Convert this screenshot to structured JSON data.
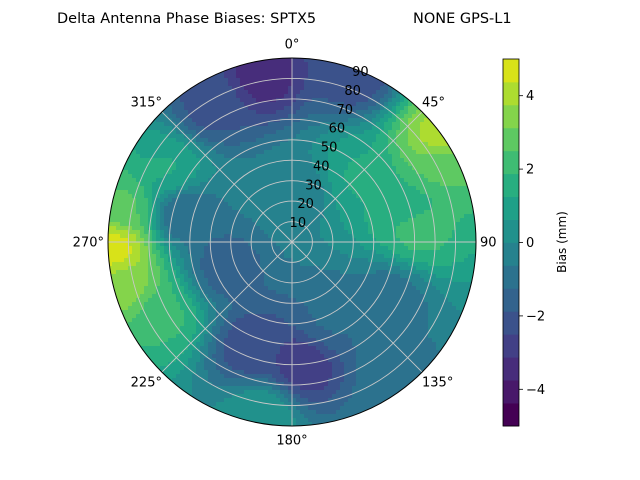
{
  "chart_data": {
    "type": "polar-contour",
    "title": "Delta Antenna Phase Biases: SPTX5",
    "subtitle": "NONE GPS-L1",
    "azimuth_ticks": [
      {
        "angle": 0,
        "label": "0°"
      },
      {
        "angle": 45,
        "label": "45°"
      },
      {
        "angle": 90,
        "label": "90"
      },
      {
        "angle": 135,
        "label": "135°"
      },
      {
        "angle": 180,
        "label": "180°"
      },
      {
        "angle": 225,
        "label": "225°"
      },
      {
        "angle": 270,
        "label": "270°"
      },
      {
        "angle": 315,
        "label": "315°"
      }
    ],
    "radial_ticks": [
      10,
      20,
      30,
      40,
      50,
      60,
      70,
      80,
      90
    ],
    "radial_range": [
      0,
      90
    ],
    "grid": true,
    "colorbar": {
      "label": "Bias (mm)",
      "range": [
        -5,
        5
      ],
      "ticks": [
        -4,
        -2,
        0,
        2,
        4
      ],
      "levels": [
        -5,
        -4.375,
        -3.75,
        -3.125,
        -2.5,
        -1.875,
        -1.25,
        -0.625,
        0,
        0.625,
        1.25,
        1.875,
        2.5,
        3.125,
        3.75,
        4.375,
        5
      ],
      "colors": [
        "#440154",
        "#48186a",
        "#472d7b",
        "#424086",
        "#3b528b",
        "#33638d",
        "#2c728e",
        "#26828e",
        "#21918c",
        "#1fa088",
        "#28ae80",
        "#3fbc73",
        "#5ec962",
        "#84d44b",
        "#addc30",
        "#d8e219",
        "#fde725"
      ]
    },
    "field": {
      "background": 0.2,
      "regions": [
        {
          "az": 350,
          "r": 84,
          "value": -3.6
        },
        {
          "az": 20,
          "r": 88,
          "value": -2.4
        },
        {
          "az": 330,
          "r": 78,
          "value": -2.2
        },
        {
          "az": 55,
          "r": 88,
          "value": 4.2
        },
        {
          "az": 62,
          "r": 82,
          "value": 2.6
        },
        {
          "az": 75,
          "r": 60,
          "value": 1.6
        },
        {
          "az": 45,
          "r": 45,
          "value": 1.3
        },
        {
          "az": 83,
          "r": 62,
          "value": 2.2
        },
        {
          "az": 268,
          "r": 87,
          "value": 4.8
        },
        {
          "az": 255,
          "r": 84,
          "value": 3.4
        },
        {
          "az": 282,
          "r": 84,
          "value": 2.6
        },
        {
          "az": 240,
          "r": 72,
          "value": 2.0
        },
        {
          "az": 300,
          "r": 70,
          "value": 1.3
        },
        {
          "az": 200,
          "r": 55,
          "value": -2.4
        },
        {
          "az": 175,
          "r": 60,
          "value": -3.1
        },
        {
          "az": 155,
          "r": 42,
          "value": -1.2
        },
        {
          "az": 250,
          "r": 35,
          "value": -1.6
        },
        {
          "az": 285,
          "r": 55,
          "value": -1.3
        },
        {
          "az": 120,
          "r": 55,
          "value": -1.0
        },
        {
          "az": 190,
          "r": 85,
          "value": 0.6
        },
        {
          "az": 140,
          "r": 85,
          "value": -0.8
        },
        {
          "az": 10,
          "r": 25,
          "value": -0.3
        }
      ]
    }
  }
}
